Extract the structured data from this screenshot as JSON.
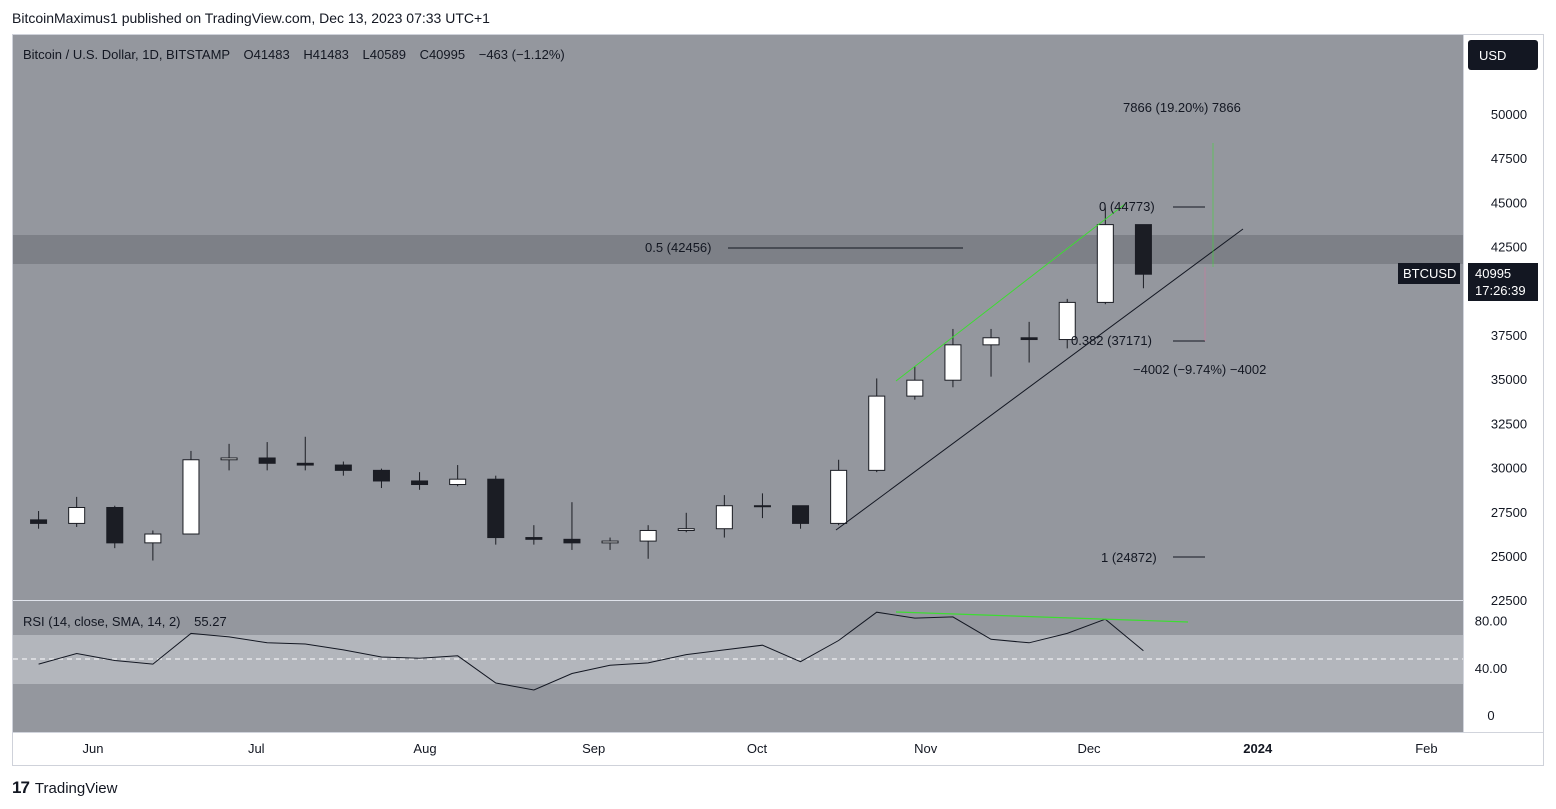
{
  "header": {
    "publish_line": "BitcoinMaximus1 published on TradingView.com, Dec 13, 2023 07:33 UTC+1"
  },
  "footer": {
    "logo_text": "TradingView",
    "logo_mark": "17"
  },
  "colors": {
    "panel_bg": "#94979e",
    "band": "#7d8087",
    "bull_candle": "#ffffff",
    "bear_candle": "#1b1d24",
    "green_line": "#3ddc32",
    "rsi_band": "#b3b6bc"
  },
  "price_panel": {
    "legend": {
      "symbol": "Bitcoin / U.S. Dollar, 1D, BITSTAMP",
      "o": "O41483",
      "h": "H41483",
      "l": "L40589",
      "c": "C40995",
      "change": "−463 (−1.12%)"
    },
    "currency_button": "USD",
    "price_tag": "40995",
    "countdown": "17:26:39",
    "ticker_tag": "BTCUSD",
    "annotations": {
      "fib_0": "0 (44773)",
      "fib_05": "0.5 (42456)",
      "fib_0382": "0.382 (37171)",
      "fib_1": "1 (24872)",
      "measure_up": "7866 (19.20%) 7866",
      "measure_down": "−4002 (−9.74%) −4002"
    }
  },
  "rsi_panel": {
    "legend": "RSI (14, close, SMA, 14, 2)",
    "value": "55.27",
    "tick_labels": [
      "80.00",
      "40.00",
      "0"
    ]
  },
  "chart_data": [
    {
      "type": "candlestick",
      "title": "Bitcoin / U.S. Dollar, 1D, BITSTAMP",
      "y_ticks": [
        22500,
        25000,
        27500,
        30000,
        32500,
        35000,
        37500,
        40000,
        42500,
        45000,
        47500,
        50000
      ],
      "ylim": [
        22500,
        51500
      ],
      "x_ticks": [
        "Jun",
        "Jul",
        "Aug",
        "Sep",
        "Oct",
        "Nov",
        "Dec",
        "2024",
        "Feb"
      ],
      "last_close": 40995,
      "resistance_zone": [
        41700,
        43300
      ],
      "fib_levels": [
        {
          "level": 0,
          "price": 44773
        },
        {
          "level": 0.5,
          "price": 42456
        },
        {
          "level": 0.382,
          "price": 37171
        },
        {
          "level": 1,
          "price": 24872
        }
      ],
      "ohlc_weekly": [
        {
          "x": "2023-05-22",
          "o": 27100,
          "h": 27600,
          "l": 26600,
          "c": 26900
        },
        {
          "x": "2023-05-29",
          "o": 26900,
          "h": 28400,
          "l": 26700,
          "c": 27800
        },
        {
          "x": "2023-06-05",
          "o": 27800,
          "h": 27900,
          "l": 25500,
          "c": 25800
        },
        {
          "x": "2023-06-12",
          "o": 25800,
          "h": 26500,
          "l": 24800,
          "c": 26300
        },
        {
          "x": "2023-06-19",
          "o": 26300,
          "h": 31000,
          "l": 26300,
          "c": 30500
        },
        {
          "x": "2023-06-26",
          "o": 30500,
          "h": 31400,
          "l": 29900,
          "c": 30600
        },
        {
          "x": "2023-07-03",
          "o": 30600,
          "h": 31500,
          "l": 29900,
          "c": 30300
        },
        {
          "x": "2023-07-10",
          "o": 30300,
          "h": 31800,
          "l": 29900,
          "c": 30200
        },
        {
          "x": "2023-07-17",
          "o": 30200,
          "h": 30400,
          "l": 29600,
          "c": 29900
        },
        {
          "x": "2023-07-24",
          "o": 29900,
          "h": 30000,
          "l": 28900,
          "c": 29300
        },
        {
          "x": "2023-07-31",
          "o": 29300,
          "h": 29800,
          "l": 28800,
          "c": 29100
        },
        {
          "x": "2023-08-07",
          "o": 29100,
          "h": 30200,
          "l": 29000,
          "c": 29400
        },
        {
          "x": "2023-08-14",
          "o": 29400,
          "h": 29600,
          "l": 25700,
          "c": 26100
        },
        {
          "x": "2023-08-21",
          "o": 26100,
          "h": 26800,
          "l": 25700,
          "c": 26000
        },
        {
          "x": "2023-08-28",
          "o": 26000,
          "h": 28100,
          "l": 25400,
          "c": 25800
        },
        {
          "x": "2023-09-04",
          "o": 25800,
          "h": 26100,
          "l": 25400,
          "c": 25900
        },
        {
          "x": "2023-09-11",
          "o": 25900,
          "h": 26800,
          "l": 24900,
          "c": 26500
        },
        {
          "x": "2023-09-18",
          "o": 26500,
          "h": 27500,
          "l": 26400,
          "c": 26600
        },
        {
          "x": "2023-09-25",
          "o": 26600,
          "h": 28500,
          "l": 26100,
          "c": 27900
        },
        {
          "x": "2023-10-02",
          "o": 27900,
          "h": 28600,
          "l": 27200,
          "c": 27900
        },
        {
          "x": "2023-10-09",
          "o": 27900,
          "h": 27900,
          "l": 26600,
          "c": 26900
        },
        {
          "x": "2023-10-16",
          "o": 26900,
          "h": 30500,
          "l": 26800,
          "c": 29900
        },
        {
          "x": "2023-10-23",
          "o": 29900,
          "h": 35100,
          "l": 29800,
          "c": 34100
        },
        {
          "x": "2023-10-30",
          "o": 34100,
          "h": 35800,
          "l": 33900,
          "c": 35000
        },
        {
          "x": "2023-11-06",
          "o": 35000,
          "h": 37900,
          "l": 34600,
          "c": 37000
        },
        {
          "x": "2023-11-13",
          "o": 37000,
          "h": 37900,
          "l": 35200,
          "c": 37400
        },
        {
          "x": "2023-11-20",
          "o": 37400,
          "h": 38300,
          "l": 36000,
          "c": 37300
        },
        {
          "x": "2023-11-27",
          "o": 37300,
          "h": 39600,
          "l": 36800,
          "c": 39400
        },
        {
          "x": "2023-12-04",
          "o": 39400,
          "h": 44773,
          "l": 39300,
          "c": 43800
        },
        {
          "x": "2023-12-11",
          "o": 43800,
          "h": 43800,
          "l": 40200,
          "c": 40995
        }
      ]
    },
    {
      "type": "line",
      "title": "RSI (14, close, SMA, 14, 2)",
      "ylim": [
        0,
        100
      ],
      "y_ticks": [
        0,
        40,
        80
      ],
      "band": [
        30,
        70
      ],
      "midline": 50,
      "last_value": 55.27,
      "values_weekly": [
        {
          "x": "2023-05-22",
          "y": 44
        },
        {
          "x": "2023-05-29",
          "y": 53
        },
        {
          "x": "2023-06-05",
          "y": 47
        },
        {
          "x": "2023-06-12",
          "y": 44
        },
        {
          "x": "2023-06-19",
          "y": 70
        },
        {
          "x": "2023-06-26",
          "y": 67
        },
        {
          "x": "2023-07-03",
          "y": 62
        },
        {
          "x": "2023-07-10",
          "y": 61
        },
        {
          "x": "2023-07-17",
          "y": 56
        },
        {
          "x": "2023-07-24",
          "y": 50
        },
        {
          "x": "2023-07-31",
          "y": 49
        },
        {
          "x": "2023-08-07",
          "y": 51
        },
        {
          "x": "2023-08-14",
          "y": 28
        },
        {
          "x": "2023-08-21",
          "y": 22
        },
        {
          "x": "2023-08-28",
          "y": 36
        },
        {
          "x": "2023-09-04",
          "y": 43
        },
        {
          "x": "2023-09-11",
          "y": 45
        },
        {
          "x": "2023-09-18",
          "y": 52
        },
        {
          "x": "2023-09-25",
          "y": 56
        },
        {
          "x": "2023-10-02",
          "y": 60
        },
        {
          "x": "2023-10-09",
          "y": 46
        },
        {
          "x": "2023-10-16",
          "y": 64
        },
        {
          "x": "2023-10-23",
          "y": 88
        },
        {
          "x": "2023-10-30",
          "y": 83
        },
        {
          "x": "2023-11-06",
          "y": 84
        },
        {
          "x": "2023-11-13",
          "y": 65
        },
        {
          "x": "2023-11-20",
          "y": 62
        },
        {
          "x": "2023-11-27",
          "y": 70
        },
        {
          "x": "2023-12-04",
          "y": 82
        },
        {
          "x": "2023-12-11",
          "y": 55.27
        }
      ]
    }
  ]
}
